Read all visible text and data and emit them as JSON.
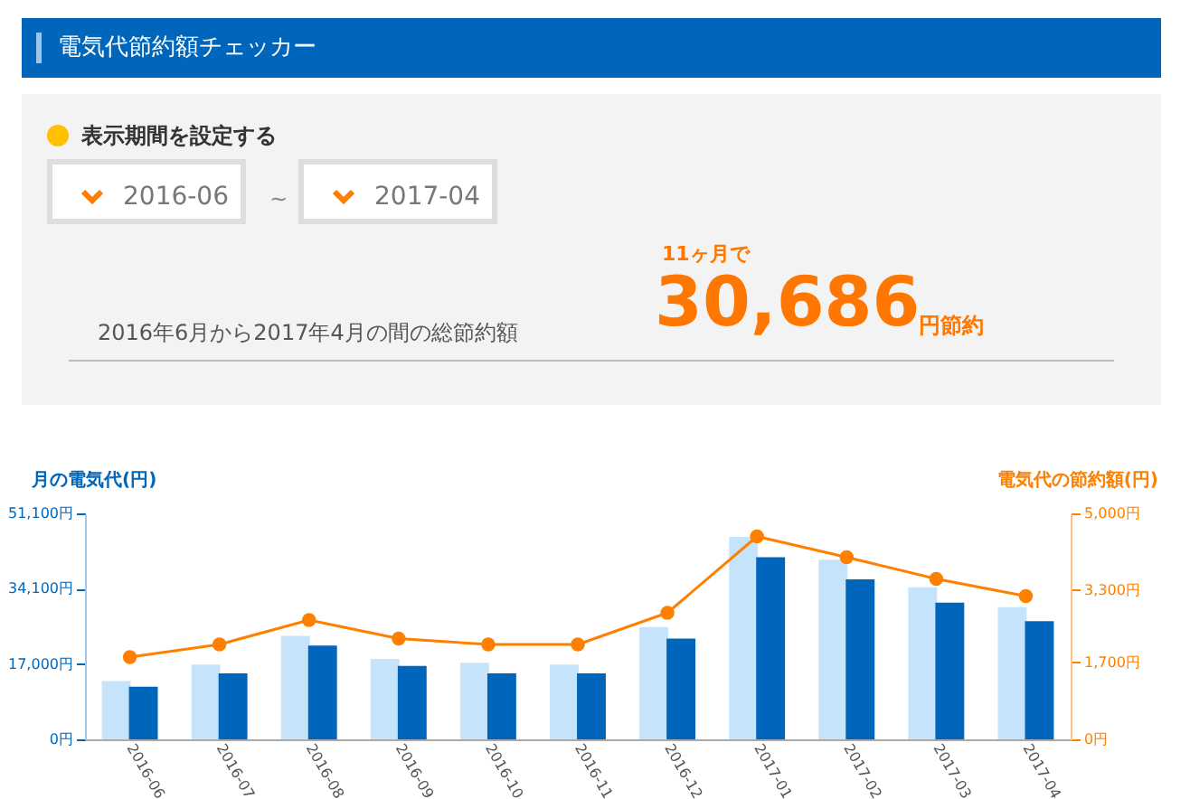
{
  "chart_data": {
    "type": "bar",
    "title": "電気代節約額チェッカー",
    "annotations": [
      "表示期間を設定する",
      "2016-06",
      "~",
      "2017-04",
      "11ヶ月で",
      "30,686",
      "円節約",
      "2016年6月から2017年4月の間の総節約額"
    ],
    "categories": [
      "2016-06",
      "2016-07",
      "2016-08",
      "2016-09",
      "2016-10",
      "2016-11",
      "2016-12",
      "2017-01",
      "2017-02",
      "2017-03",
      "2017-04"
    ],
    "ylabel": "月の電気代(円)",
    "y2label": "電気代の節約額(円)",
    "ylim": [
      0,
      51100
    ],
    "yticks": [
      {
        "value": 0,
        "label": "0円"
      },
      {
        "value": 17000,
        "label": "17,000円"
      },
      {
        "value": 34100,
        "label": "34,100円"
      },
      {
        "value": 51100,
        "label": "51,100円"
      }
    ],
    "y2lim": [
      0,
      5000
    ],
    "y2ticks": [
      {
        "value": 0,
        "label": "0円"
      },
      {
        "value": 1700,
        "label": "1,700円"
      },
      {
        "value": 3300,
        "label": "3,300円"
      },
      {
        "value": 5000,
        "label": "5,000円"
      }
    ],
    "series": [
      {
        "color": "#c5e3fb",
        "values": [
          13200,
          16900,
          23400,
          18200,
          17300,
          16900,
          25400,
          45800,
          40600,
          34400,
          29900
        ]
      },
      {
        "color": "#0066bb",
        "values": [
          11900,
          14900,
          21200,
          16600,
          14900,
          14900,
          22800,
          41200,
          36200,
          30900,
          26700
        ]
      },
      {
        "type": "line",
        "axis": "y2",
        "color": "#ff8000",
        "values": [
          1820,
          2100,
          2640,
          2230,
          2100,
          2100,
          2800,
          4490,
          4030,
          3550,
          3170
        ]
      }
    ],
    "marker": "circle",
    "grid": false
  }
}
